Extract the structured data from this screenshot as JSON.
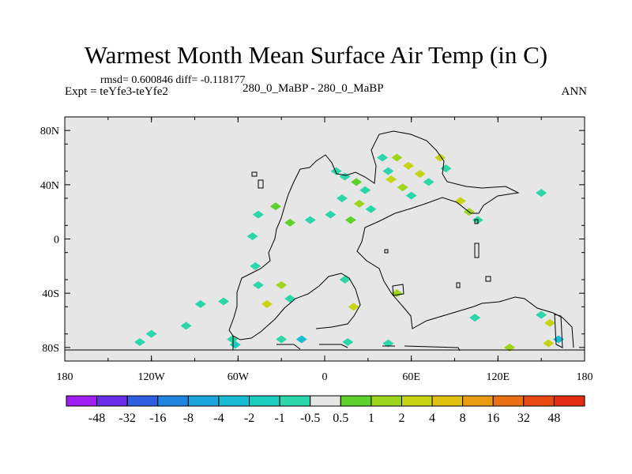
{
  "chart_data": {
    "type": "heatmap",
    "title": "Warmest Month Mean Surface Air Temp (in C)",
    "stats": "rmsd= 0.600846 diff= -0.118177",
    "expt_label": "Expt = teYfe3-teYfe2",
    "center_label": "280_0_MaBP - 280_0_MaBP",
    "season_label": "ANN",
    "x_ticks": [
      {
        "value": -180,
        "label": "180"
      },
      {
        "value": -120,
        "label": "120W"
      },
      {
        "value": -60,
        "label": "60W"
      },
      {
        "value": 0,
        "label": "0"
      },
      {
        "value": 60,
        "label": "60E"
      },
      {
        "value": 120,
        "label": "120E"
      },
      {
        "value": 180,
        "label": "180"
      }
    ],
    "y_ticks": [
      {
        "value": 80,
        "label": "80N"
      },
      {
        "value": 40,
        "label": "40N"
      },
      {
        "value": 0,
        "label": "0"
      },
      {
        "value": -40,
        "label": "40S"
      },
      {
        "value": -80,
        "label": "80S"
      }
    ],
    "xlim": [
      -180,
      180
    ],
    "ylim": [
      -90,
      90
    ],
    "colorbar": {
      "levels": [
        "-48",
        "-32",
        "-16",
        "-8",
        "-4",
        "-2",
        "-1",
        "-0.5",
        "0.5",
        "1",
        "2",
        "4",
        "8",
        "16",
        "32",
        "48"
      ],
      "colors": [
        "#9f1ff0",
        "#6a2ee8",
        "#2e5fe0",
        "#1e86e0",
        "#1aa6dc",
        "#19bcd2",
        "#1acdbd",
        "#2bd6a8",
        "#e6e6e6",
        "#5ed22a",
        "#9dd51c",
        "#c7d414",
        "#e0c010",
        "#e89a10",
        "#ea6f10",
        "#e84a12",
        "#e22d12"
      ]
    },
    "background_color": "#e6e6e6",
    "cells": [
      {
        "lon": 8,
        "lat": 50,
        "v": -0.7
      },
      {
        "lon": 14,
        "lat": 46,
        "v": -0.7
      },
      {
        "lon": 22,
        "lat": 42,
        "v": 0.8
      },
      {
        "lon": 28,
        "lat": 36,
        "v": -0.7
      },
      {
        "lon": 12,
        "lat": 30,
        "v": -0.7
      },
      {
        "lon": 24,
        "lat": 26,
        "v": 1.5
      },
      {
        "lon": 32,
        "lat": 22,
        "v": -0.7
      },
      {
        "lon": 4,
        "lat": 18,
        "v": -0.7
      },
      {
        "lon": 18,
        "lat": 14,
        "v": 0.8
      },
      {
        "lon": -10,
        "lat": 14,
        "v": -0.7
      },
      {
        "lon": -24,
        "lat": 12,
        "v": 0.7
      },
      {
        "lon": 50,
        "lat": 60,
        "v": 1.5
      },
      {
        "lon": 58,
        "lat": 54,
        "v": 3
      },
      {
        "lon": 66,
        "lat": 48,
        "v": 2
      },
      {
        "lon": 72,
        "lat": 42,
        "v": -0.7
      },
      {
        "lon": 46,
        "lat": 44,
        "v": 3
      },
      {
        "lon": 54,
        "lat": 38,
        "v": 1.5
      },
      {
        "lon": 60,
        "lat": 32,
        "v": -0.7
      },
      {
        "lon": 80,
        "lat": 60,
        "v": 3
      },
      {
        "lon": 84,
        "lat": 52,
        "v": -0.7
      },
      {
        "lon": 40,
        "lat": 60,
        "v": -0.7
      },
      {
        "lon": 44,
        "lat": 50,
        "v": -0.7
      },
      {
        "lon": 94,
        "lat": 28,
        "v": 3
      },
      {
        "lon": 100,
        "lat": 20,
        "v": 1.5
      },
      {
        "lon": 106,
        "lat": 14,
        "v": -0.7
      },
      {
        "lon": 150,
        "lat": 34,
        "v": -0.7
      },
      {
        "lon": -34,
        "lat": 24,
        "v": 0.8
      },
      {
        "lon": -46,
        "lat": 18,
        "v": -0.7
      },
      {
        "lon": -50,
        "lat": 2,
        "v": -0.7
      },
      {
        "lon": -48,
        "lat": -20,
        "v": -0.7
      },
      {
        "lon": -46,
        "lat": -34,
        "v": -0.7
      },
      {
        "lon": -30,
        "lat": -34,
        "v": 1.5
      },
      {
        "lon": -24,
        "lat": -44,
        "v": -0.7
      },
      {
        "lon": -40,
        "lat": -48,
        "v": 3
      },
      {
        "lon": -70,
        "lat": -46,
        "v": -0.7
      },
      {
        "lon": -86,
        "lat": -48,
        "v": -0.7
      },
      {
        "lon": 14,
        "lat": -30,
        "v": -0.7
      },
      {
        "lon": 20,
        "lat": -50,
        "v": 3
      },
      {
        "lon": 50,
        "lat": -40,
        "v": 1.5
      },
      {
        "lon": 104,
        "lat": -58,
        "v": -0.7
      },
      {
        "lon": -120,
        "lat": -70,
        "v": -0.7
      },
      {
        "lon": -96,
        "lat": -64,
        "v": -0.7
      },
      {
        "lon": -128,
        "lat": -76,
        "v": -0.7
      },
      {
        "lon": -62,
        "lat": -78,
        "v": -2
      },
      {
        "lon": -64,
        "lat": -74,
        "v": -0.7
      },
      {
        "lon": -30,
        "lat": -74,
        "v": -0.7
      },
      {
        "lon": -16,
        "lat": -74,
        "v": -3
      },
      {
        "lon": 16,
        "lat": -76,
        "v": -0.7
      },
      {
        "lon": 44,
        "lat": -77,
        "v": -0.7
      },
      {
        "lon": 128,
        "lat": -80,
        "v": 1.5
      },
      {
        "lon": 155,
        "lat": -77,
        "v": 3
      },
      {
        "lon": 162,
        "lat": -74,
        "v": -3
      },
      {
        "lon": 150,
        "lat": -56,
        "v": -0.7
      },
      {
        "lon": 156,
        "lat": -62,
        "v": 3
      }
    ]
  }
}
